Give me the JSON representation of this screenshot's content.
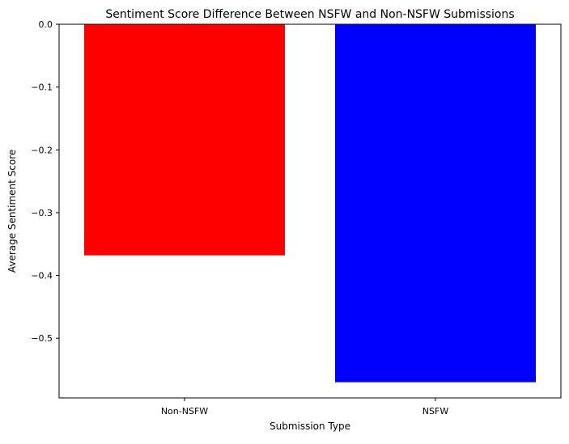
{
  "chart_data": {
    "type": "bar",
    "title": "Sentiment Score Difference Between NSFW and Non-NSFW Submissions",
    "xlabel": "Submission Type",
    "ylabel": "Average Sentiment Score",
    "categories": [
      "Non-NSFW",
      "NSFW"
    ],
    "values": [
      -0.368,
      -0.57
    ],
    "colors": [
      "#ff0000",
      "#0000ff"
    ],
    "ylim": [
      -0.595,
      0.0
    ],
    "yticks": [
      0.0,
      -0.1,
      -0.2,
      -0.3,
      -0.4,
      -0.5
    ],
    "ytick_labels": [
      "0.0",
      "−0.1",
      "−0.2",
      "−0.3",
      "−0.4",
      "−0.5"
    ],
    "grid": false,
    "legend": false
  }
}
